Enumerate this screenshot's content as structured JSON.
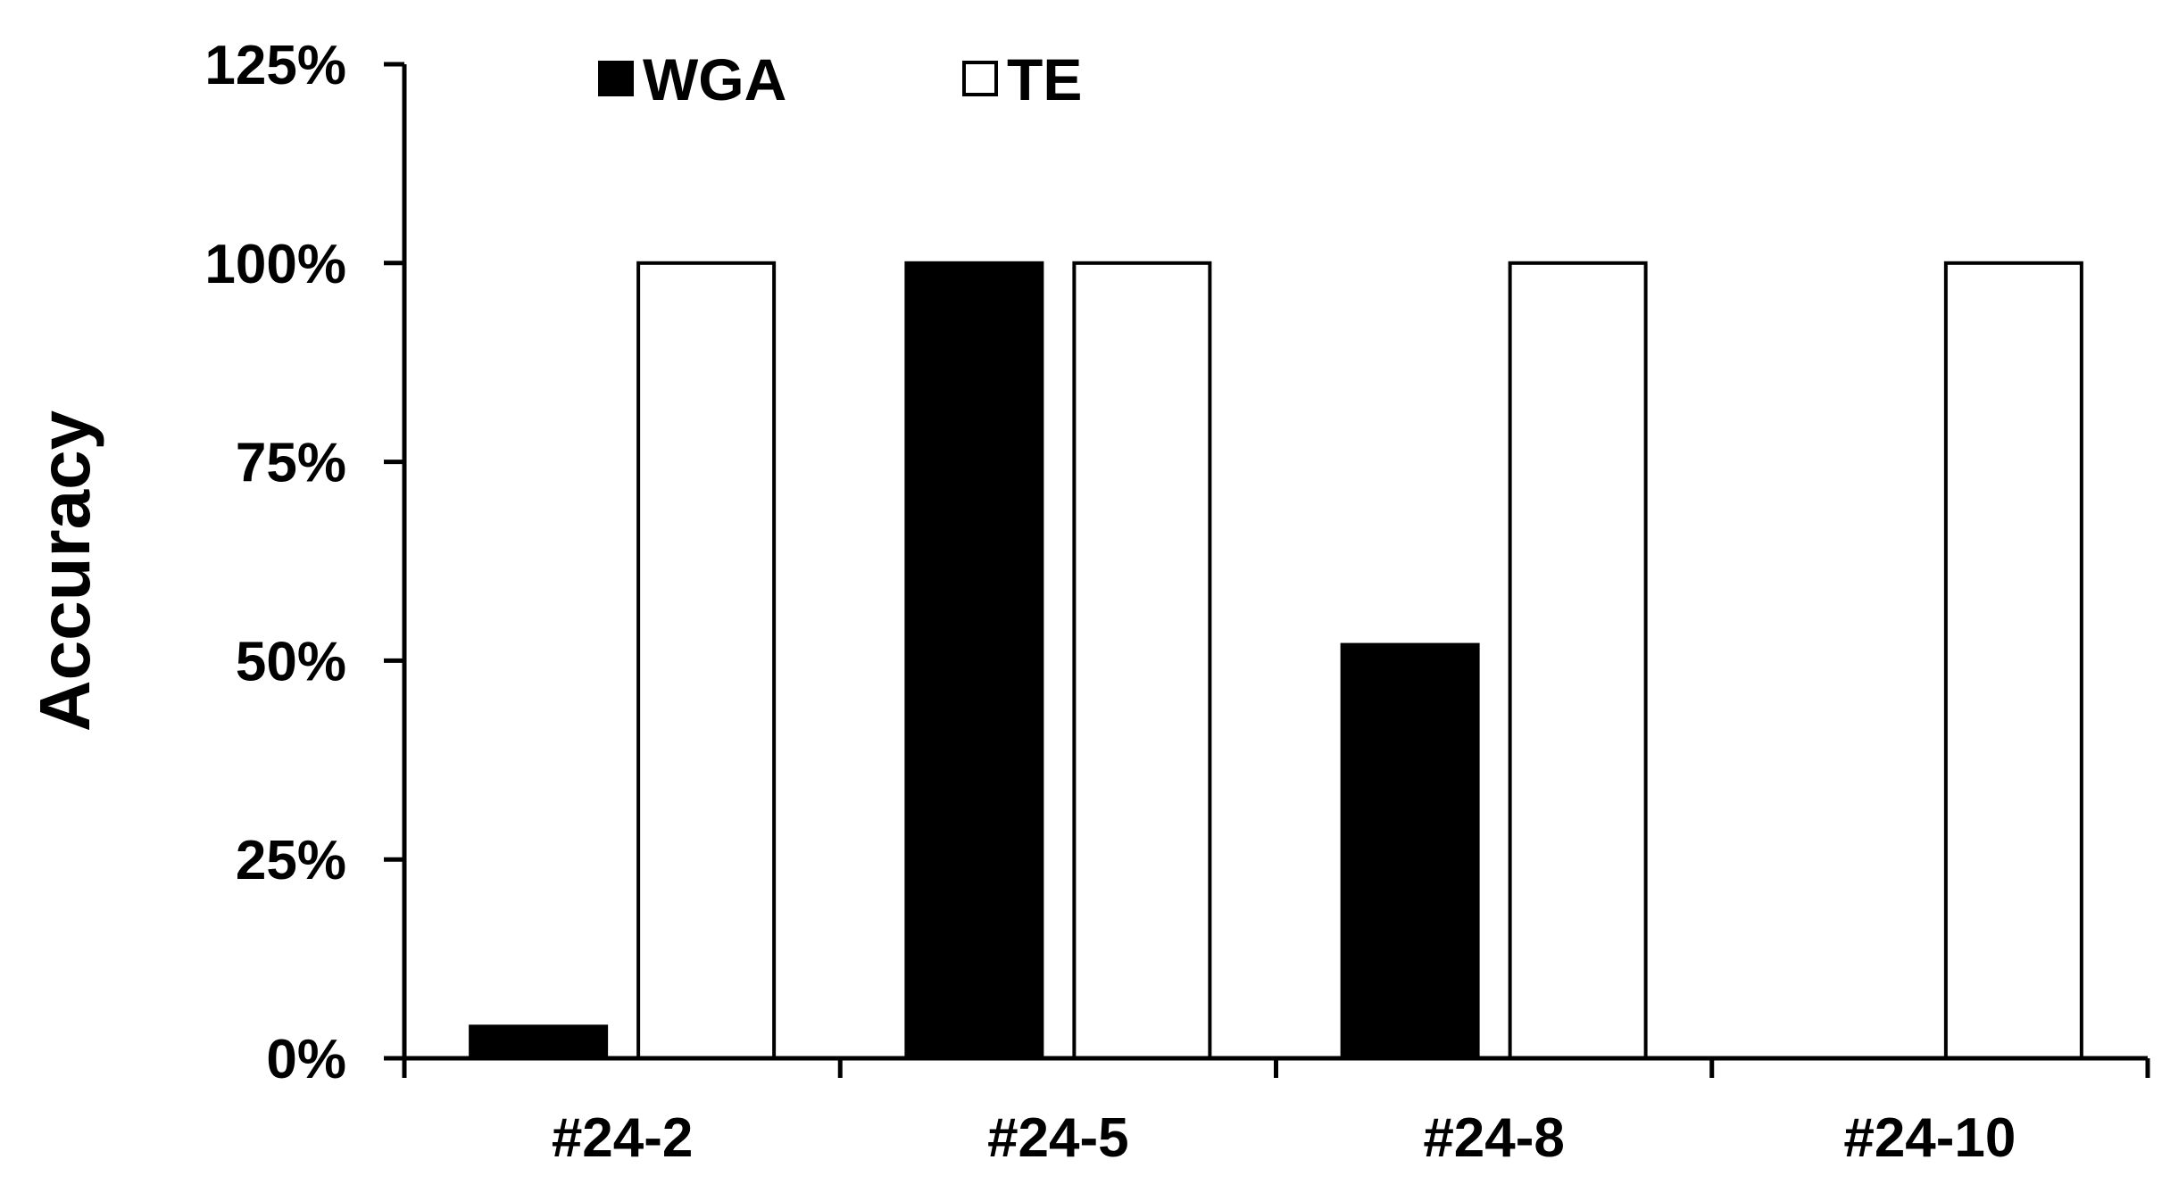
{
  "chart_data": {
    "type": "bar",
    "categories": [
      "#24-2",
      "#24-5",
      "#24-8",
      "#24-10"
    ],
    "series": [
      {
        "name": "WGA",
        "values": [
          4,
          100,
          52,
          0
        ],
        "color": "#000000"
      },
      {
        "name": "TE",
        "values": [
          100,
          100,
          100,
          100
        ],
        "color": "#ffffff"
      }
    ],
    "title": "",
    "xlabel": "",
    "ylabel": "Accuracy",
    "ylim": [
      0,
      125
    ],
    "yticks": [
      0,
      25,
      50,
      75,
      100,
      125
    ],
    "ytick_labels": [
      "0%",
      "25%",
      "50%",
      "75%",
      "100%",
      "125%"
    ],
    "grid": false,
    "legend_position": "top-left"
  }
}
